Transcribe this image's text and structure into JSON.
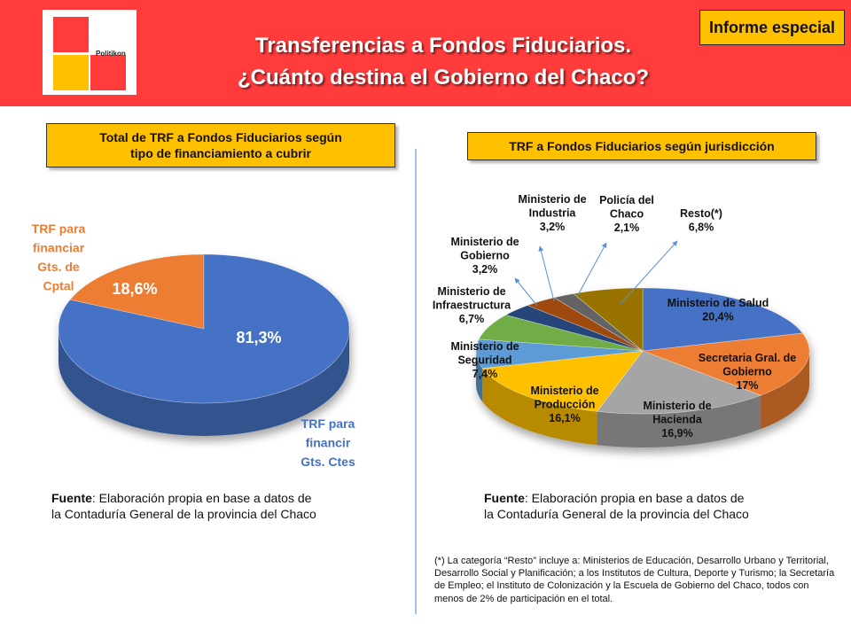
{
  "header": {
    "logo_text": "Politikon",
    "title_line1": "Transferencias a Fondos Fiduciarios.",
    "title_line2": "¿Cuánto destina el Gobierno del Chaco?",
    "badge": "Informe especial",
    "logo_colors": [
      "#ff3b3b",
      "#ffc000"
    ]
  },
  "left_panel": {
    "box_line1": "Total de TRF a Fondos Fiduciarios  según",
    "box_line2": "tipo de financiamiento  a cubrir",
    "source_bold": "Fuente",
    "source_line1": ": Elaboración propia en base a datos de",
    "source_line2": "la Contaduría  General de la provincia del Chaco"
  },
  "right_panel": {
    "box_title": "TRF a Fondos  Fiduciarios  según  jurisdicción",
    "source_bold": "Fuente",
    "source_line1": ": Elaboración propia en base a datos de",
    "source_line2": "la Contaduría  General de la provincia del Chaco",
    "footnote": "(*) La categoría “Resto” incluye a: Ministerios de Educación, Desarrollo Urbano y Territorial,  Desarrollo Social y Planificación; a los Institutos de Cultura, Deporte y Turismo;  la Secretaría de Empleo; el Instituto de Colonización  y la Escuela de Gobierno del Chaco, todos con menos de 2% de participación en el total."
  },
  "chart_data": [
    {
      "type": "pie",
      "title": "Total de TRF a Fondos Fiduciarios según tipo de financiamiento a cubrir",
      "slices": [
        {
          "label_lines": [
            "TRF para",
            "financiar",
            "Gts. de",
            "Cptal"
          ],
          "value": 18.6,
          "value_label": "18,6%",
          "color": "#ed7d31"
        },
        {
          "label_lines": [
            "TRF para",
            "financir",
            "Gts. Ctes"
          ],
          "value": 81.3,
          "value_label": "81,3%",
          "color": "#4472c4"
        }
      ]
    },
    {
      "type": "pie",
      "title": "TRF a Fondos Fiduciarios según jurisdicción",
      "slices": [
        {
          "label_lines": [
            "Ministerio de Salud",
            "20,4%"
          ],
          "value": 20.4,
          "color": "#4472c4"
        },
        {
          "label_lines": [
            "Secretaria Gral. de",
            "Gobierno",
            "17%"
          ],
          "value": 17.0,
          "color": "#ed7d31"
        },
        {
          "label_lines": [
            "Ministerio de",
            "Hacienda",
            "16,9%"
          ],
          "value": 16.9,
          "color": "#a5a5a5"
        },
        {
          "label_lines": [
            "Ministerio de",
            "Producción",
            "16,1%"
          ],
          "value": 16.1,
          "color": "#ffc000"
        },
        {
          "label_lines": [
            "Ministerio de",
            "Seguridad",
            "7,4%"
          ],
          "value": 7.4,
          "color": "#5b9bd5"
        },
        {
          "label_lines": [
            "Ministerio de",
            "Infraestructura",
            "6,7%"
          ],
          "value": 6.7,
          "color": "#70ad47"
        },
        {
          "label_lines": [
            "Ministerio de",
            "Gobierno",
            "3,2%"
          ],
          "value": 3.2,
          "color": "#264478"
        },
        {
          "label_lines": [
            "Ministerio de",
            "Industria",
            "3,2%"
          ],
          "value": 3.2,
          "color": "#9e480e"
        },
        {
          "label_lines": [
            "Policía del",
            "Chaco",
            "2,1%"
          ],
          "value": 2.1,
          "color": "#636363"
        },
        {
          "label_lines": [
            "Resto(*)",
            "6,8%"
          ],
          "value": 6.8,
          "color": "#997300"
        }
      ]
    }
  ]
}
